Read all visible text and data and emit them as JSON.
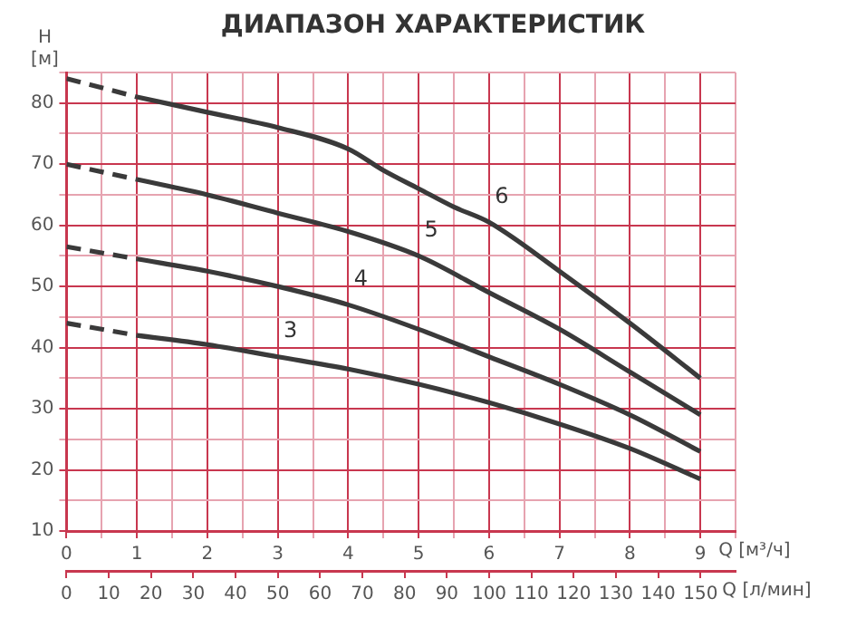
{
  "chart_data": {
    "type": "line",
    "title": "ДИАПАЗОН ХАРАКТЕРИСТИК",
    "xlabel": "Q [м³/ч]",
    "x2label": "Q [л/мин]",
    "ylabel": "H [м]",
    "xlim": [
      0,
      9.5
    ],
    "ylim": [
      10,
      85
    ],
    "x2lim": [
      0,
      158.3
    ],
    "xticks": [
      0,
      {
        "value": 0.5,
        "label": null
      },
      1,
      {
        "value": 1.5,
        "label": null
      },
      2,
      {
        "value": 2.5,
        "label": null
      },
      3,
      {
        "value": 3.5,
        "label": null
      },
      4,
      {
        "value": 4.5,
        "label": null
      },
      5,
      {
        "value": 5.5,
        "label": null
      },
      6,
      {
        "value": 6.5,
        "label": null
      },
      7,
      {
        "value": 7.5,
        "label": null
      },
      8,
      {
        "value": 8.5,
        "label": null
      },
      9,
      {
        "value": 9.5,
        "label": null
      }
    ],
    "yticks": [
      10,
      {
        "value": 15,
        "label": null
      },
      20,
      {
        "value": 25,
        "label": null
      },
      30,
      {
        "value": 35,
        "label": null
      },
      40,
      {
        "value": 45,
        "label": null
      },
      50,
      {
        "value": 55,
        "label": null
      },
      60,
      {
        "value": 65,
        "label": null
      },
      70,
      {
        "value": 75,
        "label": null
      },
      80,
      {
        "value": 85,
        "label": null
      }
    ],
    "x2ticks": [
      0,
      10,
      20,
      30,
      40,
      50,
      60,
      70,
      80,
      90,
      100,
      110,
      120,
      130,
      140,
      150
    ],
    "grid": true,
    "legend": false,
    "marker": "none",
    "series": [
      {
        "color": "#3a3a3a",
        "line_style": "dashed",
        "x": [
          0,
          1
        ],
        "values": [
          44,
          42
        ]
      },
      {
        "name": "3",
        "color": "#3a3a3a",
        "line_style": "solid",
        "x": [
          1,
          2,
          3,
          4,
          5,
          6,
          7,
          8,
          9
        ],
        "values": [
          42,
          40.5,
          38.5,
          36.5,
          34,
          31,
          27.5,
          23.5,
          18.5
        ]
      },
      {
        "color": "#3a3a3a",
        "line_style": "dashed",
        "x": [
          0,
          1
        ],
        "values": [
          56.5,
          54.5
        ]
      },
      {
        "name": "4",
        "color": "#3a3a3a",
        "line_style": "solid",
        "x": [
          1,
          2,
          3,
          4,
          5,
          6,
          7,
          8,
          9
        ],
        "values": [
          54.5,
          52.5,
          50,
          47,
          43,
          38.5,
          34,
          29,
          23
        ]
      },
      {
        "color": "#3a3a3a",
        "line_style": "dashed",
        "x": [
          0,
          1
        ],
        "values": [
          70,
          67.5
        ]
      },
      {
        "name": "5",
        "color": "#3a3a3a",
        "line_style": "solid",
        "x": [
          1,
          2,
          3,
          4,
          5,
          6,
          7,
          8,
          9
        ],
        "values": [
          67.5,
          65,
          62,
          59,
          55,
          49,
          43,
          36,
          29
        ]
      },
      {
        "color": "#3a3a3a",
        "line_style": "dashed",
        "x": [
          0,
          1
        ],
        "values": [
          84,
          81
        ]
      },
      {
        "name": "6",
        "color": "#3a3a3a",
        "line_style": "solid",
        "x": [
          1,
          2,
          3,
          4,
          4.5,
          5,
          5.5,
          6,
          7,
          8,
          9
        ],
        "values": [
          81,
          78.5,
          76,
          72.5,
          69,
          66,
          63,
          60.5,
          52.5,
          44,
          35
        ]
      }
    ]
  }
}
